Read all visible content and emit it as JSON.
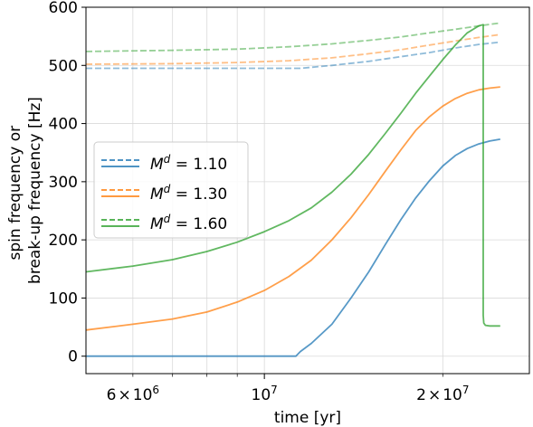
{
  "chart_data": {
    "type": "line",
    "title": "",
    "xlabel": "time [yr]",
    "ylabel_lines": [
      "spin frequency or",
      "break-up frequency [Hz]"
    ],
    "x_scale": "log",
    "xlim": [
      5000000,
      28000000
    ],
    "ylim": [
      -30,
      600
    ],
    "grid": true,
    "legend_position": "center-left",
    "x_major_ticks": [
      {
        "value": 10000000,
        "base": "10",
        "exp": "7"
      }
    ],
    "x_minor_ticks": [
      {
        "value": 6000000,
        "mant": "6",
        "base": "10",
        "exp": "6"
      },
      {
        "value": 7000000
      },
      {
        "value": 8000000
      },
      {
        "value": 9000000
      },
      {
        "value": 20000000,
        "mant": "2",
        "base": "10",
        "exp": "7"
      }
    ],
    "y_ticks": [
      {
        "value": 0,
        "label": "0"
      },
      {
        "value": 100,
        "label": "100"
      },
      {
        "value": 200,
        "label": "200"
      },
      {
        "value": 300,
        "label": "300"
      },
      {
        "value": 400,
        "label": "400"
      },
      {
        "value": 500,
        "label": "500"
      },
      {
        "value": 600,
        "label": "600"
      }
    ],
    "legend_entries": [
      {
        "symbol": "M",
        "sup": "d",
        "value": " = 1.10",
        "color": "#1f77b4"
      },
      {
        "symbol": "M",
        "sup": "d",
        "value": " = 1.30",
        "color": "#ff7f0e"
      },
      {
        "symbol": "M",
        "sup": "d",
        "value": " = 1.60",
        "color": "#2ca02c"
      }
    ],
    "series": [
      {
        "kind": "spin",
        "color": "#1f77b4",
        "style": "solid",
        "x": [
          5000000,
          8000000,
          11300000,
          11500000,
          12000000,
          13000000,
          14000000,
          15000000,
          16000000,
          17000000,
          18000000,
          19000000,
          20000000,
          21000000,
          22000000,
          23000000,
          24000000,
          25000000
        ],
        "y": [
          0,
          0,
          0,
          8,
          22,
          55,
          100,
          145,
          192,
          235,
          272,
          302,
          327,
          345,
          357,
          365,
          370,
          373
        ]
      },
      {
        "kind": "break-up",
        "color": "#1f77b4",
        "style": "dashed",
        "x": [
          5000000,
          8000000,
          11500000,
          13000000,
          15000000,
          17000000,
          19000000,
          21000000,
          23000000,
          25000000
        ],
        "y": [
          495,
          495,
          495,
          500,
          507,
          515,
          522,
          530,
          536,
          540
        ]
      },
      {
        "kind": "spin",
        "color": "#ff7f0e",
        "style": "solid",
        "x": [
          5000000,
          6000000,
          7000000,
          8000000,
          9000000,
          10000000,
          11000000,
          12000000,
          13000000,
          14000000,
          15000000,
          16000000,
          17000000,
          18000000,
          19000000,
          20000000,
          21000000,
          22000000,
          23000000,
          24000000,
          25000000
        ],
        "y": [
          45,
          55,
          64,
          76,
          93,
          113,
          137,
          165,
          200,
          238,
          278,
          318,
          355,
          388,
          412,
          430,
          443,
          452,
          458,
          461,
          463
        ]
      },
      {
        "kind": "break-up",
        "color": "#ff7f0e",
        "style": "dashed",
        "x": [
          5000000,
          7000000,
          9000000,
          11000000,
          13000000,
          15000000,
          17000000,
          19000000,
          21000000,
          23000000,
          25000000
        ],
        "y": [
          502,
          503,
          505,
          508,
          513,
          520,
          527,
          535,
          542,
          548,
          553
        ]
      },
      {
        "kind": "spin",
        "color": "#2ca02c",
        "style": "solid",
        "x": [
          5000000,
          6000000,
          7000000,
          8000000,
          9000000,
          10000000,
          11000000,
          12000000,
          13000000,
          14000000,
          15000000,
          16000000,
          17000000,
          18000000,
          19000000,
          20000000,
          21000000,
          22000000,
          23000000,
          23400000,
          23400000,
          23450000,
          23600000,
          24000000,
          25000000
        ],
        "y": [
          145,
          155,
          166,
          180,
          196,
          214,
          233,
          255,
          282,
          313,
          347,
          383,
          418,
          452,
          482,
          510,
          535,
          556,
          568,
          570,
          70,
          57,
          53,
          52,
          52
        ]
      },
      {
        "kind": "break-up",
        "color": "#2ca02c",
        "style": "dashed",
        "x": [
          5000000,
          7000000,
          9000000,
          11000000,
          13000000,
          15000000,
          17000000,
          19000000,
          21000000,
          23000000,
          25000000
        ],
        "y": [
          524,
          526,
          528,
          532,
          537,
          543,
          549,
          556,
          562,
          568,
          573
        ]
      }
    ]
  }
}
